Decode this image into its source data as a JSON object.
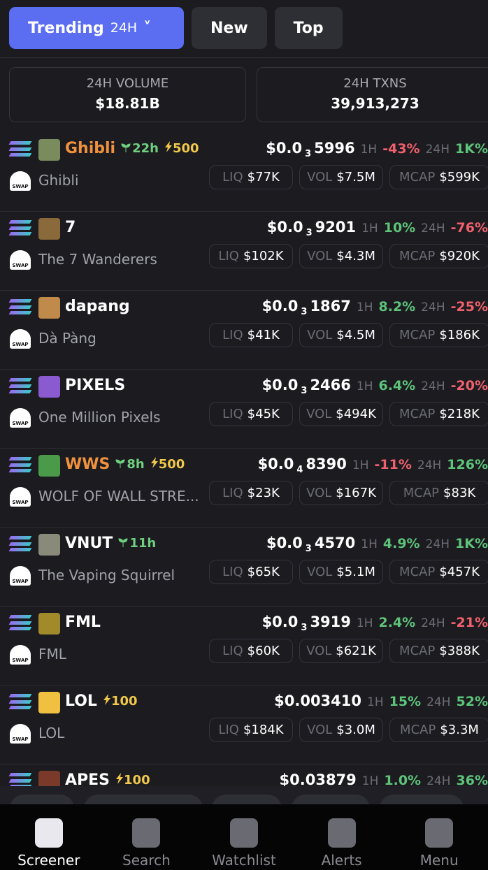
{
  "tabs": [
    {
      "label": "Trending",
      "suffix": "24H"
    },
    {
      "label": "New"
    },
    {
      "label": "Top"
    }
  ],
  "stats": [
    {
      "label": "24H VOLUME",
      "value": "$18.81B"
    },
    {
      "label": "24H TXNS",
      "value": "39,913,273"
    }
  ],
  "labels": {
    "h1": "1H",
    "h24": "24H",
    "liq": "LIQ",
    "vol": "VOL",
    "mcap": "MCAP",
    "swap": "SWAP"
  },
  "tokens": [
    {
      "symbol": "Ghibli",
      "highlight": true,
      "age": "22h",
      "boost": "500",
      "price": "$0.0",
      "price_sub": "3",
      "price_rest": "5996",
      "h1": "-43%",
      "h24": "1K%",
      "name": "Ghibli",
      "liq": "$77K",
      "vol": "$7.5M",
      "mcap": "$599K"
    },
    {
      "symbol": "7",
      "price": "$0.0",
      "price_sub": "3",
      "price_rest": "9201",
      "h1": "10%",
      "h24": "-76%",
      "name": "The 7 Wanderers",
      "liq": "$102K",
      "vol": "$4.3M",
      "mcap": "$920K"
    },
    {
      "symbol": "dapang",
      "price": "$0.0",
      "price_sub": "3",
      "price_rest": "1867",
      "h1": "8.2%",
      "h24": "-25%",
      "name": "Dà Pàng",
      "liq": "$41K",
      "vol": "$4.5M",
      "mcap": "$186K"
    },
    {
      "symbol": "PIXELS",
      "price": "$0.0",
      "price_sub": "3",
      "price_rest": "2466",
      "h1": "6.4%",
      "h24": "-20%",
      "name": "One Million Pixels",
      "liq": "$45K",
      "vol": "$494K",
      "mcap": "$218K"
    },
    {
      "symbol": "WWS",
      "highlight": true,
      "age": "8h",
      "boost": "500",
      "price": "$0.0",
      "price_sub": "4",
      "price_rest": "8390",
      "h1": "-11%",
      "h24": "126%",
      "name": "WOLF OF WALL STRE...",
      "liq": "$23K",
      "vol": "$167K",
      "mcap": "$83K"
    },
    {
      "symbol": "VNUT",
      "age": "11h",
      "price": "$0.0",
      "price_sub": "3",
      "price_rest": "4570",
      "h1": "4.9%",
      "h24": "1K%",
      "name": "The Vaping Squirrel",
      "liq": "$65K",
      "vol": "$5.1M",
      "mcap": "$457K"
    },
    {
      "symbol": "FML",
      "price": "$0.0",
      "price_sub": "3",
      "price_rest": "3919",
      "h1": "2.4%",
      "h24": "-21%",
      "name": "FML",
      "liq": "$60K",
      "vol": "$621K",
      "mcap": "$388K"
    },
    {
      "symbol": "LOL",
      "boost": "100",
      "price": "$0.003410",
      "h1": "15%",
      "h24": "52%",
      "name": "LOL",
      "liq": "$184K",
      "vol": "$3.0M",
      "mcap": "$3.3M"
    },
    {
      "symbol": "APES",
      "boost": "100",
      "price": "$0.0",
      "price_rest": "3879",
      "h1": "1.0%",
      "h24": "36%"
    }
  ],
  "nav": [
    "Screener",
    "Search",
    "Watchlist",
    "Alerts",
    "Menu"
  ]
}
